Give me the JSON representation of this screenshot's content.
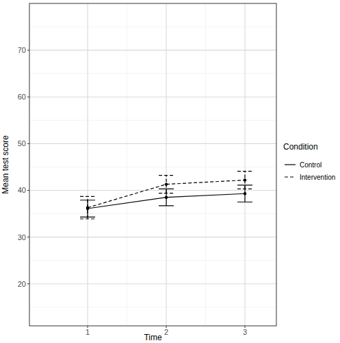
{
  "chart_data": {
    "type": "line",
    "x_label": "Time",
    "y_label": "Mean test score",
    "legend_title": "Condition",
    "x": [
      1,
      2,
      3
    ],
    "series": [
      {
        "name": "Control",
        "color": "#000000",
        "line_style": "solid",
        "marker": "circle",
        "values": [
          36.1,
          38.5,
          39.3
        ],
        "errors": [
          1.8,
          1.8,
          1.8
        ]
      },
      {
        "name": "Intervention",
        "color": "#000000",
        "line_style": "dashed",
        "marker": "circle",
        "values": [
          36.3,
          41.3,
          42.2
        ],
        "errors": [
          2.4,
          1.9,
          1.9
        ]
      }
    ],
    "xlim": [
      0.26,
      3.4
    ],
    "xticks": [
      1,
      2,
      3
    ],
    "ylim": [
      11,
      80
    ],
    "yticks": [
      20,
      30,
      40,
      50,
      60,
      70
    ],
    "grid": true,
    "legend": "right"
  }
}
